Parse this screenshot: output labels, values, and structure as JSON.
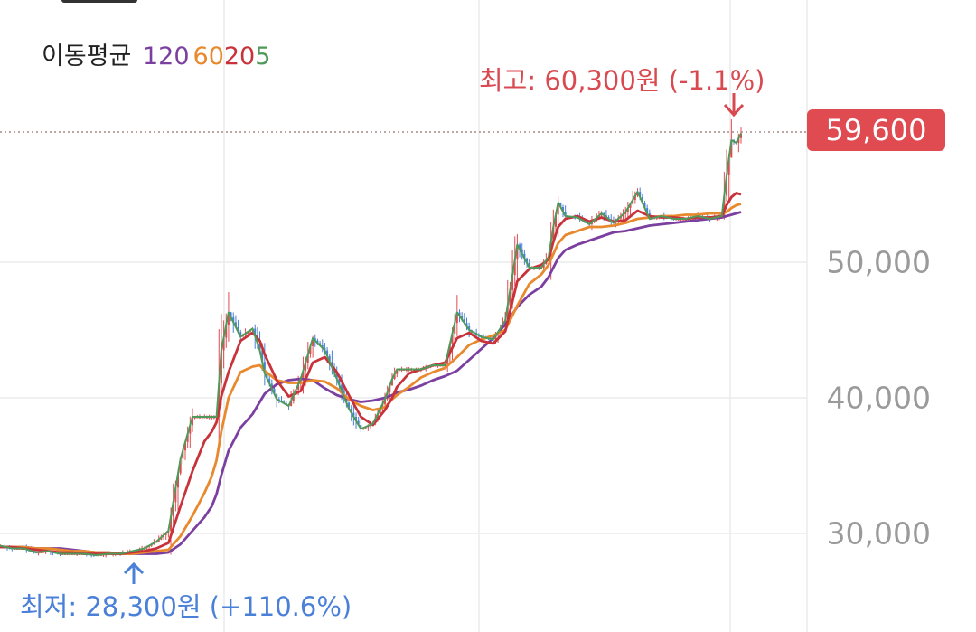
{
  "legend": {
    "title": "이동평균",
    "ma120": "120",
    "ma60": "60",
    "ma20": "20",
    "ma5": "5"
  },
  "colors": {
    "ma120": "#7b3fa0",
    "ma60": "#e8892e",
    "ma20": "#c8323a",
    "ma5": "#4f9a5a",
    "up": "#e04b52",
    "down": "#4a7fd8",
    "high": "#d84a50",
    "low": "#4a80d8"
  },
  "current_price": "59,600",
  "high_label": "최고: 60,300원 (-1.1%)",
  "low_label": "최저: 28,300원 (+110.6%)",
  "chart_data": {
    "type": "line",
    "title": "",
    "xlabel": "",
    "ylabel": "",
    "ylim": [
      25000,
      64000
    ],
    "y_ticks": [
      "30,000",
      "40,000",
      "50,000"
    ],
    "y_tick_values": [
      30000,
      40000,
      50000
    ],
    "current_price": 59600,
    "high": 60300,
    "low": 28300,
    "grid": true,
    "legend_position": "top-left",
    "x": [
      0,
      5,
      10,
      15,
      20,
      25,
      30,
      35,
      40,
      45,
      50,
      55,
      60,
      65,
      70,
      75,
      80,
      85,
      88,
      90,
      92,
      95,
      100,
      105,
      108,
      110,
      115,
      120,
      125,
      130,
      135,
      140,
      145,
      150,
      155,
      160,
      163,
      165,
      170,
      175,
      180,
      185,
      190,
      195,
      200,
      205,
      210,
      215,
      220,
      225,
      228,
      230,
      232,
      235,
      240,
      245,
      250,
      255,
      260,
      265,
      270,
      275,
      280,
      285,
      290,
      295,
      300,
      302,
      304,
      306,
      308
    ],
    "series": [
      {
        "name": "5",
        "key": "ma5",
        "values": [
          29100,
          28900,
          28900,
          28600,
          28700,
          28500,
          28500,
          28500,
          28400,
          28500,
          28500,
          28700,
          28900,
          29400,
          30200,
          35500,
          38600,
          38600,
          38600,
          38600,
          43500,
          46300,
          44500,
          45100,
          43500,
          41800,
          39900,
          39400,
          41400,
          44400,
          43500,
          41400,
          39200,
          37700,
          38100,
          39900,
          41400,
          42100,
          42100,
          42100,
          42400,
          42400,
          46300,
          45000,
          44500,
          44300,
          45700,
          51300,
          49600,
          49600,
          50400,
          52600,
          54400,
          53400,
          53300,
          52800,
          53600,
          52900,
          53700,
          55200,
          53200,
          53400,
          53200,
          53200,
          53400,
          53200,
          53400,
          56400,
          59000,
          58800,
          59500
        ]
      },
      {
        "name": "20",
        "key": "ma20",
        "values": [
          29000,
          29000,
          28900,
          28800,
          28700,
          28600,
          28600,
          28500,
          28500,
          28500,
          28500,
          28600,
          28700,
          28900,
          29300,
          32000,
          34600,
          36800,
          37500,
          38200,
          40100,
          41900,
          44200,
          44800,
          44200,
          43200,
          41300,
          40100,
          40500,
          42600,
          43000,
          41900,
          40200,
          38600,
          38000,
          39100,
          40000,
          40800,
          41800,
          42100,
          42400,
          42600,
          44400,
          44800,
          44200,
          44000,
          44900,
          48600,
          49500,
          49800,
          50200,
          51500,
          52600,
          53200,
          53400,
          53000,
          53300,
          53000,
          53100,
          53800,
          53400,
          53300,
          53300,
          53200,
          53300,
          53300,
          53400,
          54200,
          54800,
          55100,
          55000
        ]
      },
      {
        "name": "60",
        "key": "ma60",
        "values": [
          29000,
          29000,
          29000,
          28900,
          28900,
          28800,
          28700,
          28700,
          28600,
          28600,
          28500,
          28500,
          28600,
          28700,
          28800,
          29800,
          31300,
          33000,
          34200,
          35400,
          37500,
          40000,
          41900,
          42300,
          42400,
          42000,
          41300,
          41100,
          41100,
          41300,
          41200,
          40700,
          39900,
          39400,
          39100,
          39300,
          39900,
          40200,
          40800,
          41500,
          41900,
          42200,
          43000,
          43900,
          44300,
          44600,
          45000,
          46800,
          48400,
          49100,
          49800,
          50600,
          51400,
          52000,
          52300,
          52600,
          52600,
          52700,
          52900,
          53200,
          53300,
          53400,
          53400,
          53500,
          53500,
          53600,
          53600,
          53700,
          54000,
          54200,
          54300
        ]
      },
      {
        "name": "120",
        "key": "ma120",
        "values": [
          29000,
          29000,
          29000,
          28900,
          28900,
          28900,
          28800,
          28700,
          28600,
          28600,
          28500,
          28500,
          28500,
          28500,
          28600,
          29200,
          30200,
          31200,
          32000,
          32900,
          34300,
          36100,
          37800,
          38800,
          39700,
          40300,
          41000,
          41300,
          41400,
          41300,
          40700,
          40200,
          39900,
          39700,
          39800,
          40000,
          40200,
          40400,
          40600,
          40900,
          41300,
          41600,
          42000,
          42800,
          43600,
          44400,
          45400,
          46700,
          47600,
          48200,
          48900,
          49600,
          50300,
          50900,
          51300,
          51600,
          51900,
          52200,
          52300,
          52500,
          52700,
          52800,
          52900,
          53000,
          53100,
          53200,
          53300,
          53400,
          53500,
          53600,
          53700
        ]
      }
    ]
  }
}
